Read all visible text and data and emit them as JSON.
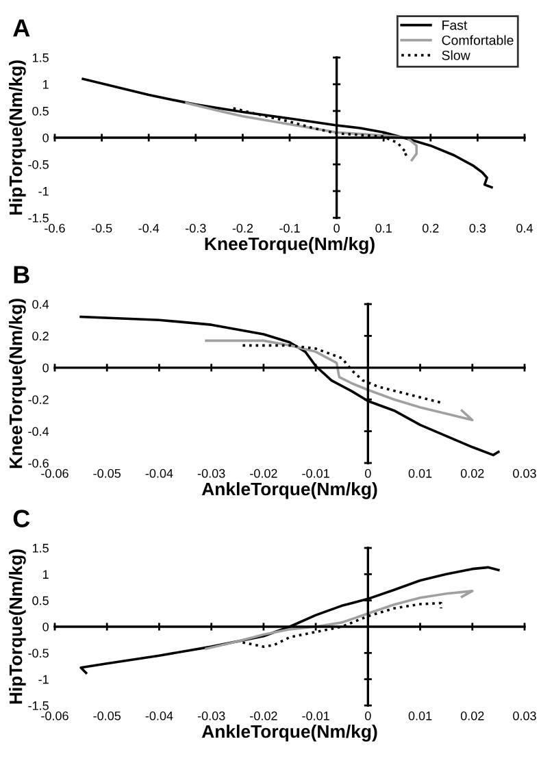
{
  "chart_data": [
    {
      "type": "line",
      "title": "A",
      "xlabel": "KneeTorque(Nm/kg)",
      "ylabel": "HipTorque(Nm/kg)",
      "xlim": [
        -0.6,
        0.4
      ],
      "ylim": [
        -1.5,
        1.5
      ],
      "xticks": [
        -0.6,
        -0.5,
        -0.4,
        -0.3,
        -0.2,
        -0.1,
        0,
        0.1,
        0.2,
        0.3,
        0.4
      ],
      "yticks": [
        -1.5,
        -1,
        -0.5,
        0,
        0.5,
        1,
        1.5
      ],
      "legend": "top right",
      "series": [
        {
          "name": "Fast",
          "color": "#000000",
          "line_style": "solid",
          "x": [
            -0.54,
            -0.4,
            -0.3,
            -0.2,
            -0.1,
            0,
            0.05,
            0.1,
            0.15,
            0.2,
            0.25,
            0.29,
            0.31,
            0.32,
            0.315,
            0.33
          ],
          "values": [
            1.1,
            0.8,
            0.62,
            0.48,
            0.36,
            0.23,
            0.18,
            0.1,
            -0.02,
            -0.15,
            -0.33,
            -0.52,
            -0.65,
            -0.75,
            -0.88,
            -0.93
          ]
        },
        {
          "name": "Comfortable",
          "color": "#a0a0a0",
          "line_style": "solid",
          "x": [
            -0.32,
            -0.25,
            -0.2,
            -0.1,
            0,
            0.1,
            0.15,
            0.17,
            0.17,
            0.16
          ],
          "values": [
            0.65,
            0.5,
            0.4,
            0.25,
            0.1,
            0.04,
            0,
            -0.15,
            -0.3,
            -0.42
          ]
        },
        {
          "name": "Slow",
          "color": "#000000",
          "line_style": "dotted",
          "x": [
            -0.22,
            -0.15,
            -0.1,
            -0.05,
            0,
            0.1,
            0.13,
            0.15,
            0.14
          ],
          "values": [
            0.55,
            0.4,
            0.3,
            0.18,
            0.08,
            0.02,
            -0.1,
            -0.3,
            -0.35
          ]
        }
      ]
    },
    {
      "type": "line",
      "title": "B",
      "xlabel": "AnkleTorque(Nm/kg)",
      "ylabel": "KneeTorque(Nm/kg)",
      "xlim": [
        -0.06,
        0.03
      ],
      "ylim": [
        -0.6,
        0.4
      ],
      "xticks": [
        -0.06,
        -0.05,
        -0.04,
        -0.03,
        -0.02,
        -0.01,
        0,
        0.01,
        0.02,
        0.03
      ],
      "yticks": [
        -0.6,
        -0.4,
        -0.2,
        0,
        0.2,
        0.4
      ],
      "series": [
        {
          "color": "#000000",
          "line_style": "solid",
          "x": [
            -0.055,
            -0.04,
            -0.03,
            -0.02,
            -0.015,
            -0.012,
            -0.01,
            -0.007,
            -0.003,
            0,
            0.005,
            0.01,
            0.015,
            0.02,
            0.024,
            0.025
          ],
          "values": [
            0.32,
            0.3,
            0.27,
            0.21,
            0.16,
            0.1,
            0.01,
            -0.08,
            -0.15,
            -0.21,
            -0.27,
            -0.36,
            -0.43,
            -0.5,
            -0.55,
            -0.53
          ]
        },
        {
          "color": "#a0a0a0",
          "line_style": "solid",
          "x": [
            -0.031,
            -0.02,
            -0.015,
            -0.01,
            -0.006,
            -0.0055,
            -0.003,
            0,
            0.005,
            0.01,
            0.015,
            0.02,
            0.018
          ],
          "values": [
            0.17,
            0.17,
            0.14,
            0.1,
            0.03,
            -0.06,
            -0.1,
            -0.14,
            -0.2,
            -0.25,
            -0.29,
            -0.33,
            -0.27
          ]
        },
        {
          "color": "#000000",
          "line_style": "dotted",
          "x": [
            -0.024,
            -0.015,
            -0.01,
            -0.005,
            -0.003,
            -0.001,
            0.002,
            0.008,
            0.014
          ],
          "values": [
            0.14,
            0.14,
            0.12,
            0.06,
            -0.02,
            -0.08,
            -0.12,
            -0.17,
            -0.22
          ]
        }
      ]
    },
    {
      "type": "line",
      "title": "C",
      "xlabel": "AnkleTorque(Nm/kg)",
      "ylabel": "HipTorque(Nm/kg)",
      "xlim": [
        -0.06,
        0.03
      ],
      "ylim": [
        -1.5,
        1.5
      ],
      "xticks": [
        -0.06,
        -0.05,
        -0.04,
        -0.03,
        -0.02,
        -0.01,
        0,
        0.01,
        0.02,
        0.03
      ],
      "yticks": [
        -1.5,
        -1,
        -0.5,
        0,
        0.5,
        1,
        1.5
      ],
      "series": [
        {
          "color": "#000000",
          "line_style": "solid",
          "x": [
            -0.054,
            -0.055,
            -0.05,
            -0.04,
            -0.03,
            -0.02,
            -0.015,
            -0.01,
            -0.005,
            0,
            0.005,
            0.01,
            0.015,
            0.02,
            0.023,
            0.025
          ],
          "values": [
            -0.88,
            -0.78,
            -0.7,
            -0.55,
            -0.38,
            -0.18,
            0,
            0.22,
            0.4,
            0.53,
            0.7,
            0.88,
            1,
            1.1,
            1.13,
            1.08
          ]
        },
        {
          "color": "#a0a0a0",
          "line_style": "solid",
          "x": [
            -0.031,
            -0.025,
            -0.02,
            -0.015,
            -0.01,
            -0.005,
            0,
            0.005,
            0.01,
            0.015,
            0.02,
            0.018
          ],
          "values": [
            -0.42,
            -0.28,
            -0.15,
            -0.05,
            0,
            0.08,
            0.25,
            0.42,
            0.55,
            0.63,
            0.68,
            0.57
          ]
        },
        {
          "color": "#000000",
          "line_style": "dotted",
          "x": [
            -0.024,
            -0.02,
            -0.018,
            -0.015,
            -0.01,
            -0.005,
            0,
            0.005,
            0.01,
            0.014,
            0.014
          ],
          "values": [
            -0.3,
            -0.38,
            -0.35,
            -0.2,
            -0.1,
            0,
            0.2,
            0.35,
            0.43,
            0.45,
            0.35
          ]
        }
      ]
    }
  ]
}
